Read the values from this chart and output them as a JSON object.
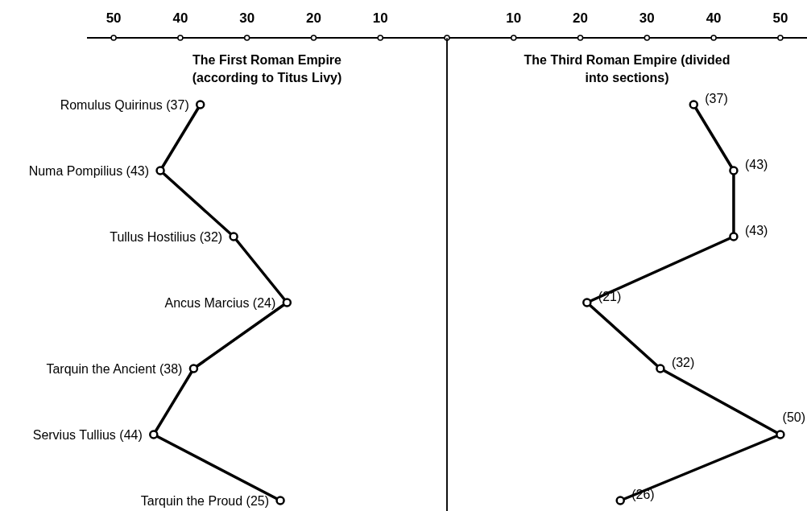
{
  "chart_data": [
    {
      "type": "line",
      "orientation": "horizontal",
      "title": "The First Roman Empire (according to Titus Livy)",
      "categories": [
        "Romulus Quirinus (37)",
        "Numa Pompilius (43)",
        "Tullus Hostilius (32)",
        "Ancus Marcius (24)",
        "Tarquin the Ancient (38)",
        "Servius Tullius (44)",
        "Tarquin the Proud (25)"
      ],
      "values": [
        37,
        43,
        32,
        24,
        38,
        44,
        25
      ],
      "color": "#000000",
      "marker": "circle",
      "xlim": [
        54,
        0
      ],
      "xticks": [
        50,
        40,
        30,
        20,
        10
      ]
    },
    {
      "type": "line",
      "orientation": "horizontal",
      "title": "The Third Roman Empire (divided into sections)",
      "categories": [
        null,
        null,
        null,
        null,
        null,
        null,
        null
      ],
      "values": [
        37,
        43,
        43,
        21,
        32,
        50,
        26
      ],
      "value_labels": [
        "(37)",
        "(43)",
        "(43)",
        "(21)",
        "(32)",
        "(50)",
        "(26)"
      ],
      "color": "#000000",
      "marker": "circle",
      "xlim": [
        0,
        54
      ],
      "xticks": [
        {
          "value": 0,
          "label": null
        },
        10,
        20,
        30,
        40,
        50
      ],
      "tick_labels": "x"
    }
  ]
}
